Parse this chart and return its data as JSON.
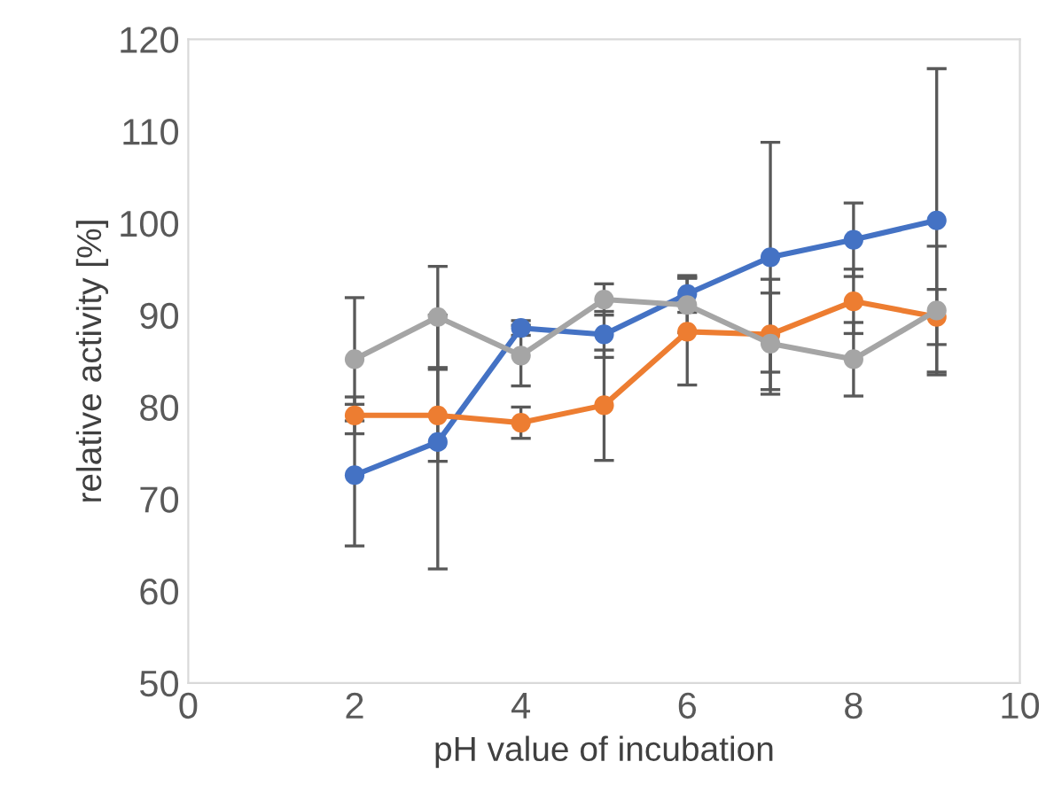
{
  "chart_data": {
    "type": "line",
    "xlabel": "pH value of incubation",
    "ylabel": "relative activity [%]",
    "xlim": [
      0,
      10
    ],
    "xticks": [
      0,
      2,
      4,
      6,
      8,
      10
    ],
    "ylim": [
      50,
      120
    ],
    "yticks": [
      50,
      60,
      70,
      80,
      90,
      100,
      110,
      120
    ],
    "grid": false,
    "legend": false,
    "marker": "circle",
    "line_style": "solid",
    "series": [
      {
        "color": "#4472c4",
        "x": [
          2,
          3,
          4,
          5,
          6,
          7,
          8,
          9
        ],
        "values": [
          72.6,
          76.2,
          88.6,
          87.9,
          92.3,
          96.3,
          98.2,
          100.3
        ],
        "errors": [
          7.7,
          13.8,
          0.8,
          2.5,
          2,
          12.5,
          4,
          16.5
        ]
      },
      {
        "color": "#ed7d31",
        "x": [
          2,
          3,
          4,
          5,
          6,
          7,
          8,
          9
        ],
        "values": [
          79.1,
          79.1,
          78.3,
          80.2,
          88.2,
          87.9,
          91.5,
          89.8
        ],
        "errors": [
          2,
          5,
          1.7,
          6,
          5.8,
          6,
          3.5,
          3
        ]
      },
      {
        "color": "#a5a5a5",
        "x": [
          2,
          3,
          4,
          5,
          6,
          7,
          8,
          9
        ],
        "values": [
          85.2,
          89.8,
          85.6,
          91.7,
          91.1,
          86.9,
          85.2,
          90.5
        ],
        "errors": [
          6.7,
          5.5,
          3.3,
          1.7,
          3,
          5.5,
          4,
          7
        ]
      }
    ]
  }
}
